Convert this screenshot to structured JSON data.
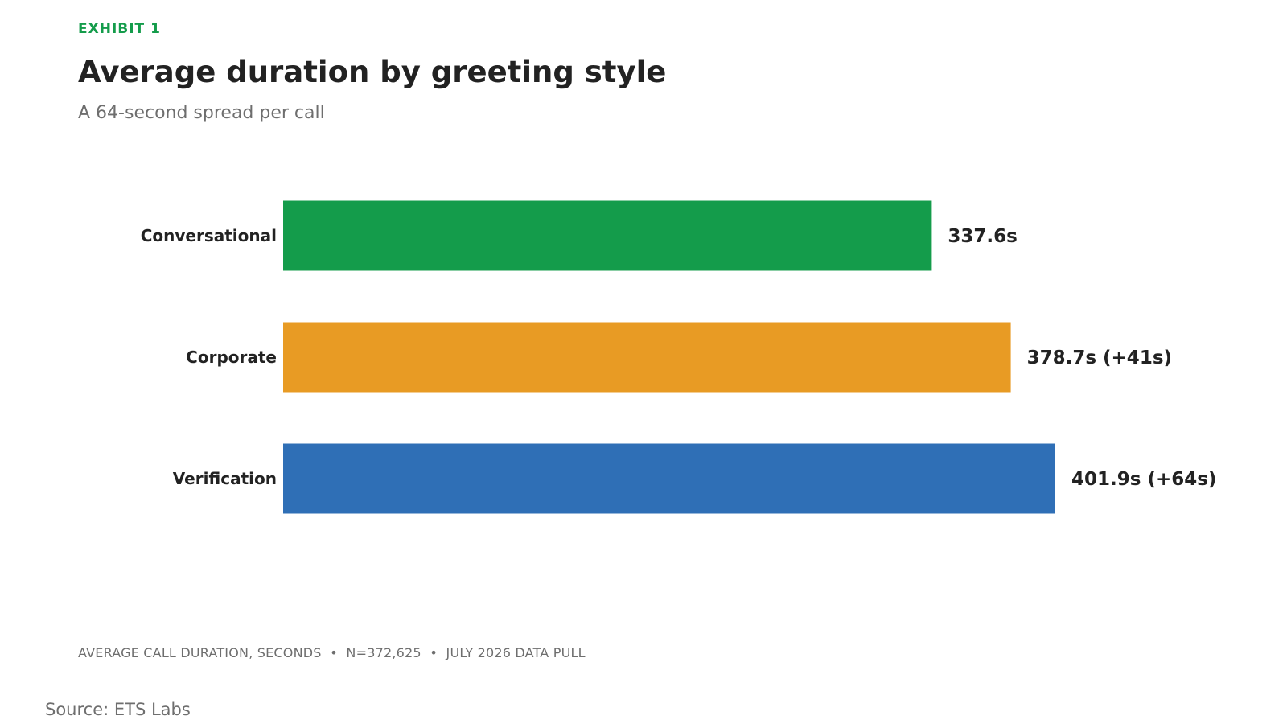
{
  "header": {
    "eyebrow": "EXHIBIT 1",
    "title": "Average duration by greeting style",
    "subtitle": "A 64-second spread per call"
  },
  "chart_data": {
    "type": "bar",
    "orientation": "horizontal",
    "categories": [
      "Conversational",
      "Corporate",
      "Verification"
    ],
    "values": [
      337.6,
      378.7,
      401.9
    ],
    "data_labels": [
      "337.6s",
      "378.7s (+41s)",
      "401.9s (+64s)"
    ],
    "colors": [
      "#149c4b",
      "#e89b24",
      "#2f6fb6"
    ],
    "title": "Average duration by greeting style",
    "subtitle": "A 64-second spread per call",
    "xlabel": "",
    "ylabel": "",
    "xlim": [
      0,
      401.9
    ],
    "grid": false,
    "legend": "none"
  },
  "footer": {
    "note": "AVERAGE CALL DURATION, SECONDS  •  N=372,625  •  JULY 2026 DATA PULL",
    "source": "Source: ETS Labs"
  }
}
